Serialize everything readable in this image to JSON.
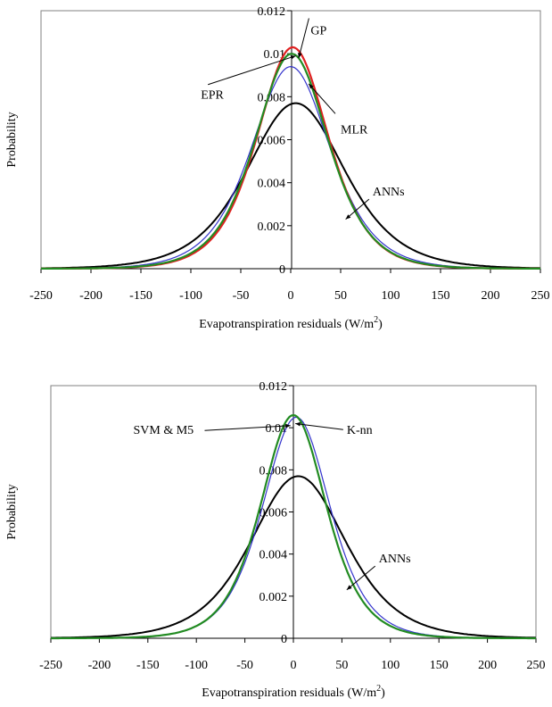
{
  "chart_data": [
    {
      "type": "line",
      "ylabel": "Probability",
      "xlabel_main": "Evapotranspiration residuals (W/m",
      "xlabel_sup": "2",
      "xlabel_end": ")",
      "xlim": [
        -250,
        250
      ],
      "ylim": [
        0,
        0.012
      ],
      "xticks": [
        "-250",
        "-200",
        "-150",
        "-100",
        "-50",
        "0",
        "50",
        "100",
        "150",
        "200",
        "250"
      ],
      "yticks": [
        "0",
        "0.002",
        "0.004",
        "0.006",
        "0.008",
        "0.01",
        "0.012"
      ],
      "grid": false,
      "series": [
        {
          "color": "#000000",
          "mean": 5,
          "peak": 0.0077,
          "sigma": 52,
          "values_note": ""
        },
        {
          "color": "#3333cc",
          "mean": 0,
          "peak": 0.0094,
          "sigma": 42
        },
        {
          "color": "#e02020",
          "mean": 2,
          "peak": 0.0103,
          "sigma": 38
        },
        {
          "color": "#228b22",
          "mean": 1,
          "peak": 0.01,
          "sigma": 39
        }
      ],
      "annotations": [
        {
          "label": "GP",
          "text_x": 20,
          "text_y": 0.0109,
          "targets": [
            [
              8,
              0.0098
            ]
          ]
        },
        {
          "label": "EPR",
          "text_x": -90,
          "text_y": 0.0079,
          "targets": [
            [
              5,
              0.0099
            ]
          ]
        },
        {
          "label": "MLR",
          "text_x": 50,
          "text_y": 0.0063,
          "targets": [
            [
              18,
              0.0086
            ]
          ]
        },
        {
          "label": "ANNs",
          "text_x": 82,
          "text_y": 0.0034,
          "targets": [
            [
              55,
              0.0023
            ]
          ]
        }
      ]
    },
    {
      "type": "line",
      "ylabel": "Probability",
      "xlabel_main": "Evapotranspiration residuals (W/m",
      "xlabel_sup": "2",
      "xlabel_end": ")",
      "xlim": [
        -250,
        250
      ],
      "ylim": [
        0,
        0.012
      ],
      "xticks": [
        "-250",
        "-200",
        "-150",
        "-100",
        "-50",
        "0",
        "50",
        "100",
        "150",
        "200",
        "250"
      ],
      "yticks": [
        "0",
        "0.002",
        "0.004",
        "0.006",
        "0.008",
        "0.01",
        "0.012"
      ],
      "grid": false,
      "series": [
        {
          "color": "#000000",
          "mean": 5,
          "peak": 0.0077,
          "sigma": 52
        },
        {
          "color": "#3333cc",
          "mean": 3,
          "peak": 0.0105,
          "sigma": 37
        },
        {
          "color": "#228b22",
          "mean": 0,
          "peak": 0.0106,
          "sigma": 36
        }
      ],
      "annotations": [
        {
          "label": "SVM & M5",
          "text_x": -165,
          "text_y": 0.0097,
          "targets": [
            [
              -3,
              0.0101
            ]
          ]
        },
        {
          "label": "K-nn",
          "text_x": 55,
          "text_y": 0.0097,
          "targets": [
            [
              2,
              0.0102
            ]
          ]
        },
        {
          "label": "ANNs",
          "text_x": 88,
          "text_y": 0.0036,
          "targets": [
            [
              55,
              0.0023
            ]
          ]
        }
      ]
    }
  ]
}
